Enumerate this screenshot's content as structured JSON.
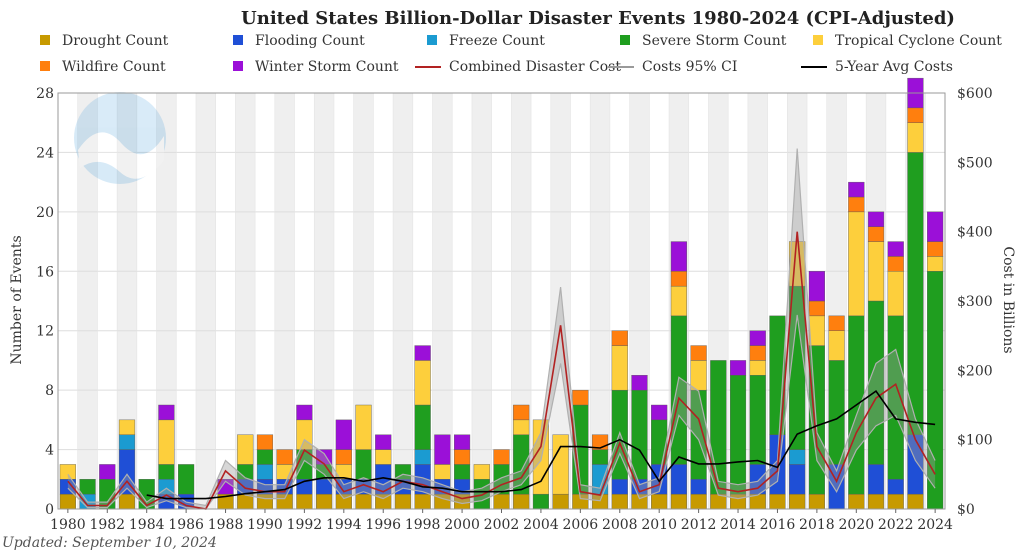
{
  "chart_data": {
    "type": "bar",
    "title": "United States Billion-Dollar Disaster Events 1980-2024 (CPI-Adjusted)",
    "ylabel_left": "Number of Events",
    "ylabel_right": "Cost in Billions",
    "ylim_left": [
      0,
      28
    ],
    "ylim_right": [
      0,
      600
    ],
    "yticks_left": [
      "0",
      "4",
      "8",
      "12",
      "16",
      "20",
      "24",
      "28"
    ],
    "yticks_right": [
      "$0",
      "$100",
      "$200",
      "$300",
      "$400",
      "$500",
      "$600"
    ],
    "x_tick_labels": [
      "1980",
      "1982",
      "1984",
      "1986",
      "1988",
      "1990",
      "1992",
      "1994",
      "1996",
      "1998",
      "2000",
      "2002",
      "2004",
      "2006",
      "2008",
      "2010",
      "2012",
      "2014",
      "2016",
      "2018",
      "2020",
      "2022",
      "2024"
    ],
    "x_tick_values": [
      1980,
      1982,
      1984,
      1986,
      1988,
      1990,
      1992,
      1994,
      1996,
      1998,
      2000,
      2002,
      2004,
      2006,
      2008,
      2010,
      2012,
      2014,
      2016,
      2018,
      2020,
      2022,
      2024
    ],
    "grid": true,
    "years": [
      1980,
      1981,
      1982,
      1983,
      1984,
      1985,
      1986,
      1987,
      1988,
      1989,
      1990,
      1991,
      1992,
      1993,
      1994,
      1995,
      1996,
      1997,
      1998,
      1999,
      2000,
      2001,
      2002,
      2003,
      2004,
      2005,
      2006,
      2007,
      2008,
      2009,
      2010,
      2011,
      2012,
      2013,
      2014,
      2015,
      2016,
      2017,
      2018,
      2019,
      2020,
      2021,
      2022,
      2023,
      2024
    ],
    "series": [
      {
        "name": "Drought Count",
        "color": "#c79a00",
        "values": [
          1,
          0,
          0,
          1,
          0,
          0,
          0,
          0,
          1,
          1,
          1,
          1,
          1,
          1,
          1,
          1,
          1,
          1,
          1,
          1,
          1,
          0,
          1,
          1,
          0,
          1,
          1,
          1,
          1,
          1,
          1,
          1,
          1,
          1,
          1,
          1,
          1,
          1,
          1,
          0,
          1,
          1,
          1,
          1,
          0
        ]
      },
      {
        "name": "Flooding Count",
        "color": "#1f4fd6",
        "values": [
          1,
          0,
          0,
          3,
          0,
          1,
          1,
          0,
          0,
          1,
          1,
          1,
          1,
          1,
          1,
          1,
          2,
          1,
          2,
          1,
          1,
          0,
          0,
          0,
          0,
          0,
          0,
          0,
          1,
          1,
          2,
          2,
          1,
          0,
          0,
          2,
          4,
          2,
          0,
          3,
          0,
          2,
          1,
          4,
          0
        ]
      },
      {
        "name": "Freeze Count",
        "color": "#1b9bd1",
        "values": [
          0,
          1,
          0,
          1,
          0,
          1,
          0,
          0,
          0,
          0,
          1,
          0,
          0,
          0,
          0,
          0,
          0,
          0,
          1,
          0,
          0,
          0,
          0,
          0,
          0,
          0,
          0,
          2,
          0,
          0,
          0,
          0,
          0,
          0,
          0,
          0,
          0,
          1,
          0,
          0,
          0,
          0,
          0,
          0,
          0
        ]
      },
      {
        "name": "Severe Storm Count",
        "color": "#1f9e1f",
        "values": [
          0,
          1,
          2,
          0,
          2,
          1,
          2,
          0,
          0,
          1,
          1,
          0,
          2,
          1,
          0,
          2,
          0,
          1,
          3,
          0,
          1,
          2,
          2,
          4,
          1,
          0,
          6,
          1,
          6,
          6,
          3,
          10,
          6,
          9,
          8,
          6,
          8,
          11,
          10,
          7,
          12,
          11,
          11,
          19,
          16
        ]
      },
      {
        "name": "Tropical Cyclone Count",
        "color": "#fdcf3c",
        "values": [
          1,
          0,
          0,
          1,
          0,
          3,
          0,
          0,
          0,
          2,
          0,
          1,
          2,
          0,
          1,
          3,
          1,
          0,
          3,
          1,
          0,
          1,
          0,
          1,
          5,
          4,
          0,
          0,
          3,
          0,
          0,
          2,
          2,
          0,
          0,
          1,
          0,
          3,
          2,
          2,
          7,
          4,
          3,
          2,
          1
        ]
      },
      {
        "name": "Wildfire Count",
        "color": "#ff7f0e",
        "values": [
          0,
          0,
          0,
          0,
          0,
          0,
          0,
          0,
          0,
          0,
          1,
          1,
          0,
          0,
          1,
          0,
          0,
          0,
          0,
          0,
          1,
          0,
          1,
          1,
          0,
          0,
          1,
          1,
          1,
          0,
          0,
          1,
          1,
          0,
          0,
          1,
          0,
          0,
          1,
          1,
          1,
          1,
          1,
          1,
          1
        ]
      },
      {
        "name": "Winter Storm Count",
        "color": "#9b10d8",
        "values": [
          0,
          0,
          1,
          0,
          0,
          1,
          0,
          0,
          1,
          0,
          0,
          0,
          1,
          1,
          2,
          0,
          1,
          0,
          1,
          2,
          1,
          0,
          0,
          0,
          0,
          0,
          0,
          0,
          0,
          1,
          1,
          2,
          0,
          0,
          1,
          1,
          0,
          0,
          2,
          0,
          1,
          1,
          1,
          2,
          2
        ]
      }
    ],
    "line_series": [
      {
        "name": "Combined Disaster Cost",
        "color": "#b22222",
        "unit": "billions",
        "values": [
          40,
          5,
          5,
          40,
          5,
          20,
          5,
          0,
          55,
          30,
          25,
          25,
          85,
          65,
          25,
          35,
          25,
          40,
          35,
          25,
          15,
          20,
          35,
          45,
          90,
          265,
          25,
          20,
          95,
          25,
          35,
          160,
          130,
          30,
          25,
          30,
          55,
          400,
          90,
          40,
          110,
          160,
          180,
          100,
          50
        ]
      },
      {
        "name": "Costs 95% CI",
        "color": "#9a9a9a",
        "unit": "billions",
        "upper": [
          50,
          10,
          10,
          50,
          10,
          30,
          10,
          5,
          70,
          45,
          35,
          35,
          100,
          80,
          35,
          45,
          35,
          50,
          45,
          35,
          25,
          30,
          45,
          55,
          110,
          320,
          35,
          30,
          110,
          35,
          45,
          190,
          170,
          40,
          35,
          40,
          70,
          520,
          110,
          55,
          135,
          210,
          230,
          130,
          70
        ],
        "lower": [
          30,
          2,
          2,
          30,
          2,
          12,
          2,
          0,
          40,
          20,
          15,
          15,
          70,
          50,
          15,
          25,
          15,
          30,
          25,
          15,
          8,
          12,
          25,
          35,
          70,
          210,
          15,
          12,
          80,
          15,
          25,
          135,
          100,
          20,
          15,
          20,
          40,
          280,
          70,
          25,
          85,
          120,
          135,
          70,
          30
        ]
      },
      {
        "name": "5-Year Avg Costs",
        "color": "#000000",
        "unit": "billions",
        "values": [
          null,
          null,
          null,
          null,
          20,
          15,
          15,
          15,
          18,
          22,
          25,
          28,
          40,
          45,
          45,
          40,
          45,
          40,
          32,
          30,
          25,
          25,
          25,
          28,
          40,
          90,
          90,
          88,
          100,
          85,
          40,
          75,
          65,
          65,
          68,
          70,
          60,
          108,
          120,
          130,
          150,
          170,
          130,
          125,
          122
        ]
      }
    ],
    "legend": [
      "Drought Count",
      "Flooding Count",
      "Freeze Count",
      "Severe Storm Count",
      "Tropical Cyclone Count",
      "Wildfire Count",
      "Winter Storm Count",
      "Combined Disaster Cost",
      "Costs 95% CI",
      "5-Year Avg Costs"
    ],
    "legend_placement": "top"
  },
  "footer": {
    "updated": "Updated: September 10, 2024"
  }
}
